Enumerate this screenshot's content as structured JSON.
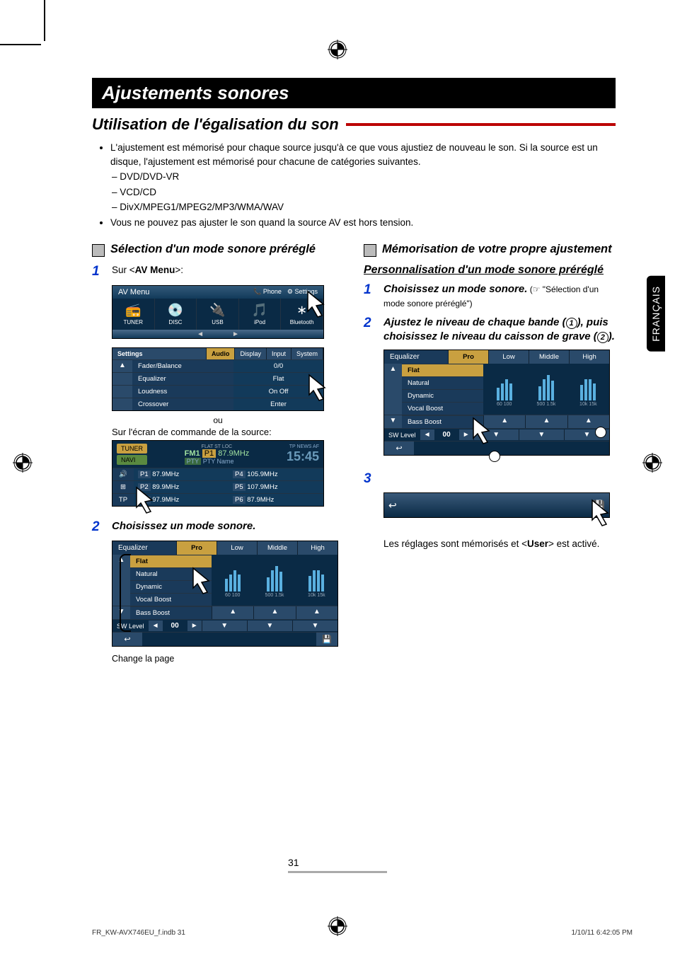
{
  "title_bar": "Ajustements sonores",
  "subtitle": "Utilisation de l'égalisation du son",
  "bullets": {
    "b1": "L'ajustement est mémorisé pour chaque source jusqu'à ce que vous ajustiez de nouveau le son. Si la source est un disque, l'ajustement est mémorisé pour chacune de catégories suivantes.",
    "s1": "– DVD/DVD-VR",
    "s2": "– VCD/CD",
    "s3": "– DivX/MPEG1/MPEG2/MP3/WMA/WAV",
    "b2": "Vous ne pouvez pas ajuster le son quand la source AV est hors tension."
  },
  "left": {
    "h3": "Sélection d'un mode sonore préréglé",
    "step1_pre": "Sur <",
    "step1_bold": "AV Menu",
    "step1_post": ">:",
    "avmenu": {
      "title": "AV Menu",
      "right1": "📞 Phone",
      "right2": "⚙ Settings",
      "icons": [
        "TUNER",
        "DISC",
        "USB",
        "iPod",
        "Bluetooth"
      ],
      "glyphs": [
        "📻",
        "💿",
        "🔌",
        "🎵",
        "∗"
      ]
    },
    "settings": {
      "title": "Settings",
      "tabs": [
        "Audio",
        "Display",
        "Input",
        "System"
      ],
      "rows": [
        {
          "label": "Fader/Balance",
          "val": "0/0"
        },
        {
          "label": "Equalizer",
          "val": "Flat"
        },
        {
          "label": "Loudness",
          "val": "On            Off"
        },
        {
          "label": "Crossover",
          "val": "Enter"
        }
      ]
    },
    "ou": "ou",
    "src_line": "Sur l'écran de commande de la source:",
    "tuner": {
      "tuner_btn": "TUNER",
      "navi_btn": "NAVI",
      "fm": "FM1",
      "p1": "P1",
      "freq": "87.9MHz",
      "pty": "PTY Name",
      "flags": "FLAT   ST  LOC",
      "tp": "TP NEWS AF",
      "clock": "15:45",
      "presets": [
        [
          "P1",
          "87.9MHz",
          "P4",
          "105.9MHz"
        ],
        [
          "P2",
          "89.9MHz",
          "P5",
          "107.9MHz"
        ],
        [
          "P3",
          "97.9MHz",
          "P6",
          "87.9MHz"
        ]
      ],
      "left_icons": [
        "🔊",
        "⊞",
        "TP"
      ]
    },
    "step2": "Choisissez un mode sonore.",
    "eq": {
      "title": "Equalizer",
      "tabs": [
        "Pro",
        "Low",
        "Middle",
        "High"
      ],
      "presets": [
        "Flat",
        "Natural",
        "Dynamic",
        "Vocal Boost",
        "Bass Boost"
      ],
      "sw_label": "SW Level",
      "sw_val": "00",
      "axis": [
        "60",
        "100",
        "500",
        "1.5k",
        "10k",
        "15k"
      ],
      "bar_heights_low": [
        18,
        24,
        30,
        24
      ],
      "bar_heights_mid": [
        20,
        30,
        36,
        28
      ],
      "bar_heights_high": [
        22,
        30,
        30,
        24
      ]
    },
    "caption": "Change la page"
  },
  "right": {
    "h3": "Mémorisation de votre propre ajustement",
    "h4": "Personnalisation d'un mode sonore préréglé",
    "step1a": "Choisissez un mode sonore.",
    "step1b": " (☞ \"Sélection d'un mode sonore préréglé\")",
    "step2a": "Ajustez le niveau de chaque bande (",
    "step2b": "), puis choisissez le niveau du caisson de grave (",
    "step2c": ").",
    "result": "Les réglages sont mémorisés et <",
    "result_bold": "User",
    "result_post": "> est activé."
  },
  "lang_tab": "FRANÇAIS",
  "page_num": "31",
  "footer_left": "FR_KW-AVX746EU_f.indb   31",
  "footer_right": "1/10/11   6:42:05 PM",
  "colors": {
    "red": "#b00020",
    "blue": "#0033cc",
    "screenshot_bg": "#0a2a45",
    "tab_active": "#c9a040"
  }
}
